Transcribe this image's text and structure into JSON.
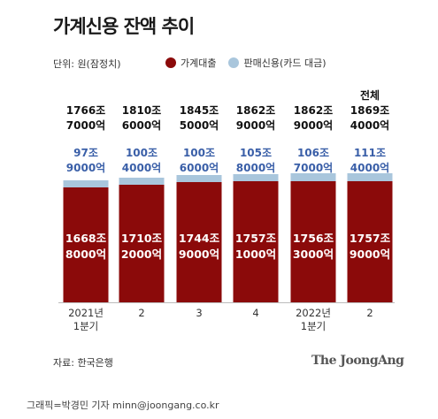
{
  "header": {
    "title": "가계신용 잔액 추이",
    "unit": "단위: 원(잠정치)"
  },
  "legend": [
    {
      "label": "가계대출",
      "color": "#8b0a0a"
    },
    {
      "label": "판매신용(카드 대금)",
      "color": "#a9c6dc"
    }
  ],
  "chart_data": {
    "type": "bar",
    "stacked": true,
    "categories": [
      "2021년\n1분기",
      "2",
      "3",
      "4",
      "2022년\n1분기",
      "2"
    ],
    "series": [
      {
        "name": "가계대출",
        "values": [
          1668.8,
          1710.2,
          1744.9,
          1757.1,
          1756.3,
          1757.9
        ],
        "labels": [
          "1668조\n8000억",
          "1710조\n2000억",
          "1744조\n9000억",
          "1757조\n1000억",
          "1756조\n3000억",
          "1757조\n9000억"
        ],
        "color": "#8b0a0a"
      },
      {
        "name": "판매신용(카드 대금)",
        "values": [
          97.9,
          100.4,
          100.6,
          105.8,
          106.7,
          111.4
        ],
        "labels": [
          "97조\n9000억",
          "100조\n4000억",
          "100조\n6000억",
          "105조\n8000억",
          "106조\n7000억",
          "111조\n4000억"
        ],
        "color": "#a9c6dc"
      }
    ],
    "totals": [
      1766.7,
      1810.6,
      1845.5,
      1862.9,
      1862.9,
      1869.4
    ],
    "total_labels": [
      "1766조\n7000억",
      "1810조\n6000억",
      "1845조\n5000억",
      "1862조\n9000억",
      "1862조\n9000억",
      "전체\n1869조\n4000억"
    ],
    "xlabel": "",
    "ylabel": ""
  },
  "footer": {
    "source": "자료: 한국은행",
    "brand": "The JoongAng",
    "credit": "그래픽=박경민 기자 minn@joongang.co.kr"
  }
}
